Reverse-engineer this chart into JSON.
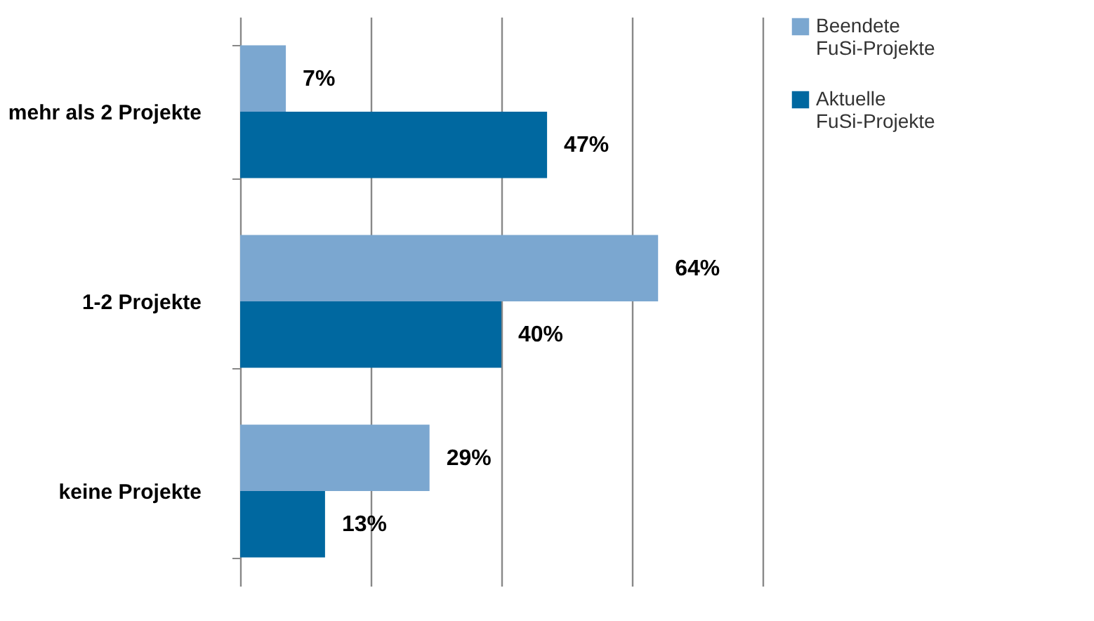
{
  "chart_data": {
    "type": "bar",
    "orientation": "horizontal",
    "categories": [
      "mehr als 2 Projekte",
      "1-2 Projekte",
      "keine Projekte"
    ],
    "series": [
      {
        "name": "Beendete FuSi-Projekte",
        "color": "#7ba7d0",
        "values": [
          7,
          64,
          29
        ],
        "value_labels": [
          "7%",
          "64%",
          "29%"
        ]
      },
      {
        "name": "Aktuelle FuSi-Projekte",
        "color": "#0068a0",
        "values": [
          47,
          40,
          13
        ],
        "value_labels": [
          "47%",
          "40%",
          "13%"
        ]
      }
    ],
    "grid": "x",
    "legend": "right",
    "tick_labels": "y"
  }
}
